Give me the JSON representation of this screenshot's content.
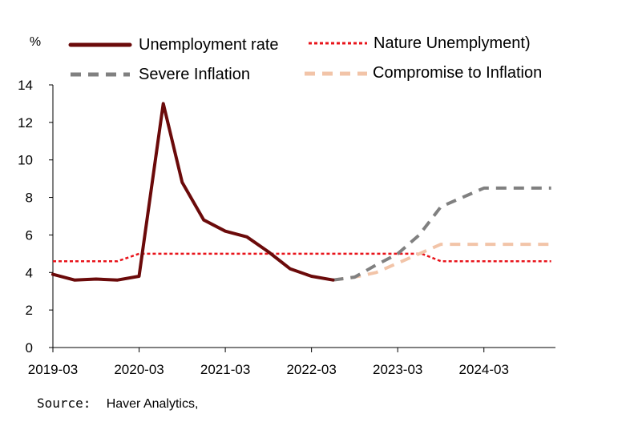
{
  "colors": {
    "unemployment": "#6b0a0a",
    "nature": "#e8141b",
    "severe": "#808080",
    "compromise": "#f2c4a8",
    "axis": "#000000"
  },
  "chart_data": {
    "type": "line",
    "title": "",
    "ylabel": "%",
    "xlabel": "",
    "ylim": [
      0,
      14
    ],
    "yticks": [
      0,
      2,
      4,
      6,
      8,
      10,
      12,
      14
    ],
    "xlim": [
      2019.17,
      2025.0
    ],
    "xticks": [
      {
        "label": "2019-03",
        "x": 2019.17
      },
      {
        "label": "2020-03",
        "x": 2020.17
      },
      {
        "label": "2021-03",
        "x": 2021.17
      },
      {
        "label": "2022-03",
        "x": 2022.17
      },
      {
        "label": "2023-03",
        "x": 2023.17
      },
      {
        "label": "2024-03",
        "x": 2024.17
      }
    ],
    "legend_position": "top",
    "series": [
      {
        "key": "unemployment",
        "name": "Unemployment rate",
        "style": "solid",
        "points": [
          [
            2019.17,
            3.9
          ],
          [
            2019.42,
            3.6
          ],
          [
            2019.67,
            3.65
          ],
          [
            2019.92,
            3.6
          ],
          [
            2020.17,
            3.8
          ],
          [
            2020.45,
            13.0
          ],
          [
            2020.67,
            8.8
          ],
          [
            2020.92,
            6.8
          ],
          [
            2021.17,
            6.2
          ],
          [
            2021.42,
            5.9
          ],
          [
            2021.67,
            5.1
          ],
          [
            2021.92,
            4.2
          ],
          [
            2022.17,
            3.8
          ],
          [
            2022.42,
            3.6
          ]
        ]
      },
      {
        "key": "nature",
        "name": "Nature Unemplyment)",
        "style": "dotted",
        "points": [
          [
            2019.17,
            4.6
          ],
          [
            2019.92,
            4.6
          ],
          [
            2020.17,
            5.0
          ],
          [
            2023.45,
            5.0
          ],
          [
            2023.67,
            4.6
          ],
          [
            2024.95,
            4.6
          ]
        ]
      },
      {
        "key": "severe",
        "name": "Severe Inflation",
        "style": "dashed",
        "points": [
          [
            2022.42,
            3.6
          ],
          [
            2022.67,
            3.75
          ],
          [
            2022.92,
            4.4
          ],
          [
            2023.17,
            5.0
          ],
          [
            2023.42,
            6.0
          ],
          [
            2023.67,
            7.5
          ],
          [
            2023.92,
            8.0
          ],
          [
            2024.17,
            8.5
          ],
          [
            2024.42,
            8.5
          ],
          [
            2024.67,
            8.5
          ],
          [
            2024.95,
            8.5
          ]
        ]
      },
      {
        "key": "compromise",
        "name": "Compromise to Inflation",
        "style": "dashed",
        "points": [
          [
            2022.42,
            3.6
          ],
          [
            2022.67,
            3.75
          ],
          [
            2022.92,
            4.0
          ],
          [
            2023.17,
            4.5
          ],
          [
            2023.42,
            5.0
          ],
          [
            2023.67,
            5.5
          ],
          [
            2023.92,
            5.5
          ],
          [
            2024.17,
            5.5
          ],
          [
            2024.42,
            5.5
          ],
          [
            2024.67,
            5.5
          ],
          [
            2024.95,
            5.5
          ]
        ]
      }
    ],
    "source": {
      "prefix": "Source:",
      "text": "Haver Analytics,"
    }
  }
}
